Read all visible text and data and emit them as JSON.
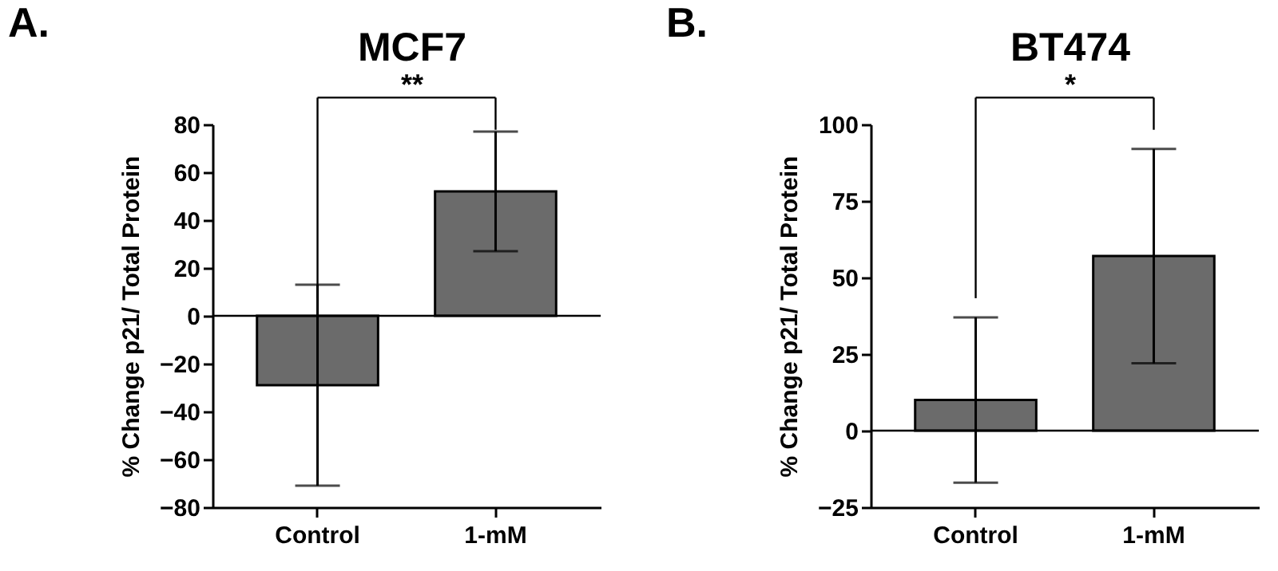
{
  "chart_data": [
    {
      "type": "bar",
      "title": "MCF7",
      "ylabel": "% Change p21/ Total Protein",
      "categories": [
        "Control",
        "1-mM"
      ],
      "values": [
        -29,
        52
      ],
      "errors": [
        42,
        25
      ],
      "color": "#6b6b6b",
      "ylim": [
        -80,
        80
      ],
      "yticks": [
        -80,
        -60,
        -40,
        -20,
        0,
        20,
        40,
        60,
        80
      ],
      "grid": false,
      "ref_lines": [
        {
          "axis": "y",
          "value": 0
        }
      ],
      "annotations": [
        "A.",
        "**"
      ]
    },
    {
      "type": "bar",
      "title": "BT474",
      "ylabel": "% Change p21/ Total Protein",
      "categories": [
        "Control",
        "1-mM"
      ],
      "values": [
        10,
        57
      ],
      "errors": [
        27,
        35
      ],
      "color": "#6b6b6b",
      "ylim": [
        -25,
        100
      ],
      "yticks": [
        -25,
        0,
        25,
        50,
        75,
        100
      ],
      "grid": false,
      "ref_lines": [
        {
          "axis": "y",
          "value": 0
        }
      ],
      "annotations": [
        "B.",
        "*"
      ]
    }
  ]
}
